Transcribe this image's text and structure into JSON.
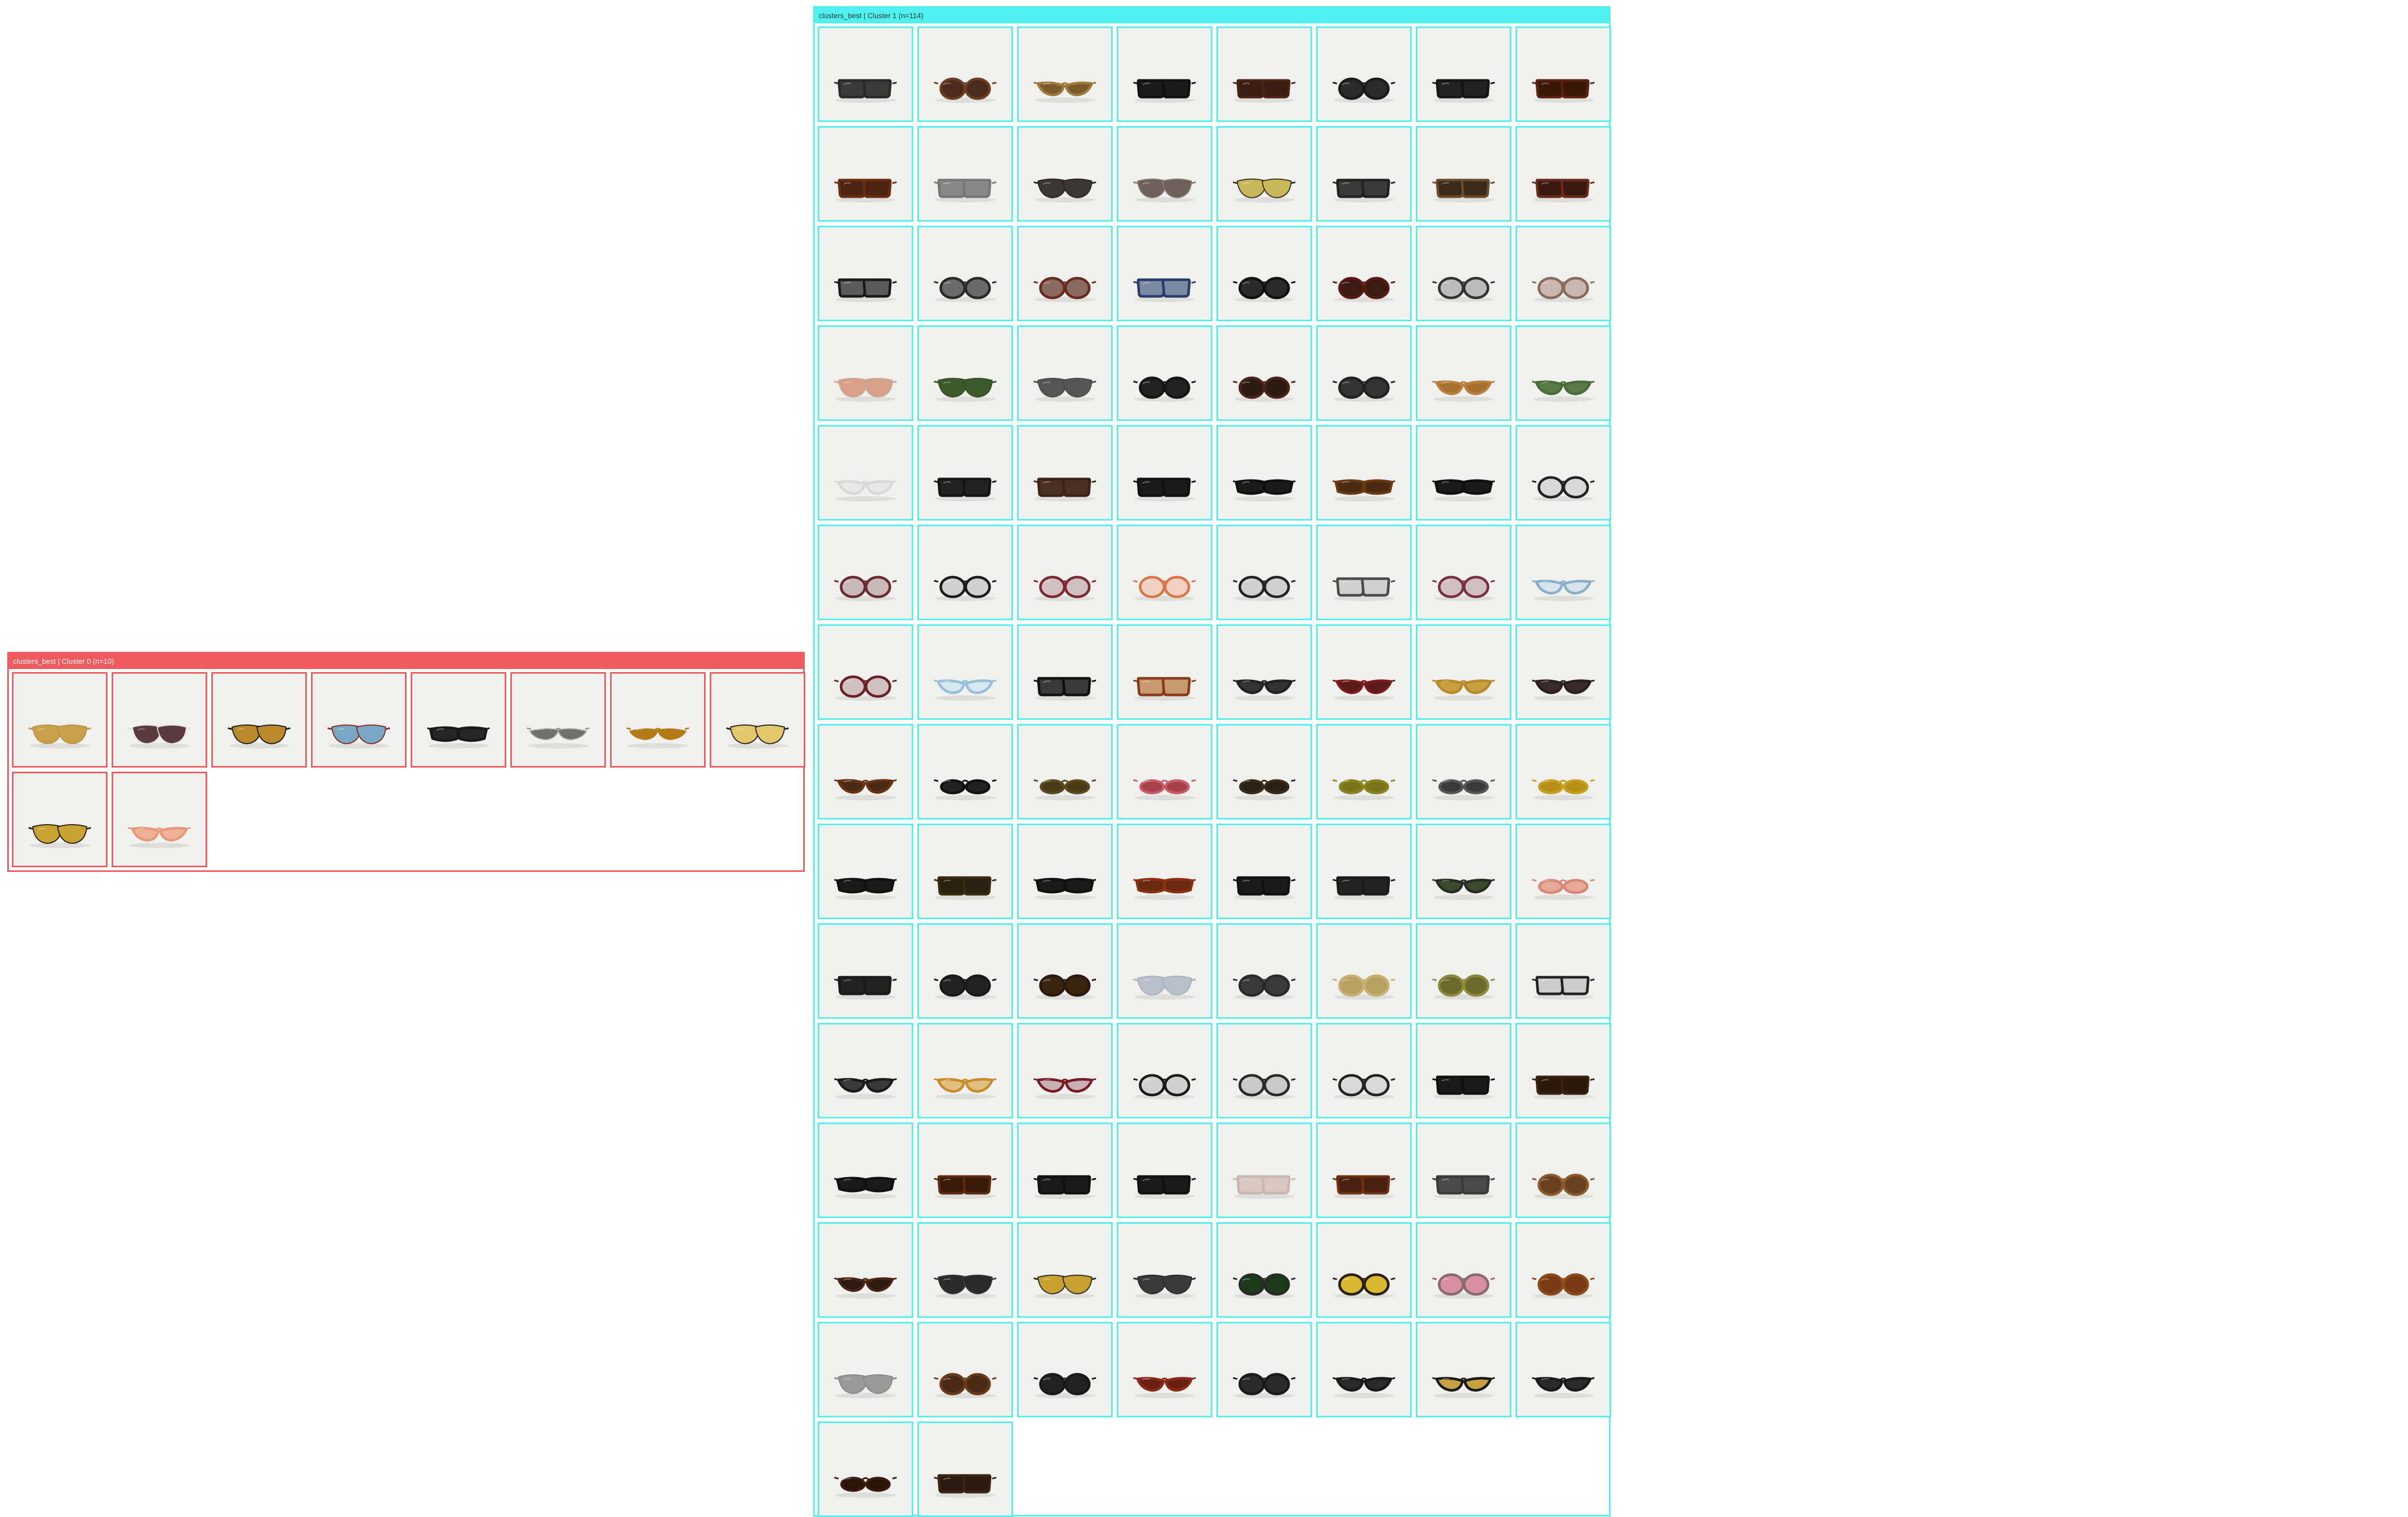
{
  "clusters": [
    {
      "title": "clusters_best | Cluster 0  (n=10)",
      "accent": "#ee5a5d",
      "items": [
        {
          "style": "aviator",
          "frame": "#b8954a",
          "lens": "#c9a04a"
        },
        {
          "style": "aviator",
          "frame": "#e5e2dd",
          "lens": "#5a3a3c"
        },
        {
          "style": "aviator",
          "frame": "#1d1a18",
          "lens": "#b98a2a"
        },
        {
          "style": "aviator",
          "frame": "#8a2a24",
          "lens": "#78a8c4"
        },
        {
          "style": "wrap",
          "frame": "#191919",
          "lens": "#262626"
        },
        {
          "style": "shield",
          "frame": "#9a9a98",
          "lens": "#6f706e"
        },
        {
          "style": "shield",
          "frame": "#b7801e",
          "lens": "#b47a16"
        },
        {
          "style": "aviator",
          "frame": "#2a2420",
          "lens": "#e2c86a"
        },
        {
          "style": "aviator",
          "frame": "#2a2018",
          "lens": "#c7a230"
        },
        {
          "style": "catEye",
          "frame": "#e59a78",
          "lens": "#f0b09a"
        }
      ]
    },
    {
      "title": "clusters_best | Cluster 1  (n=114)",
      "accent": "#4ff0ef",
      "items": [
        {
          "style": "square",
          "frame": "#2a2a2a",
          "lens": "#3a3a3a"
        },
        {
          "style": "round",
          "frame": "#6b3e22",
          "lens": "#4a2a1a"
        },
        {
          "style": "catEye",
          "frame": "#9b7a3a",
          "lens": "#7a5a2a"
        },
        {
          "style": "square",
          "frame": "#111111",
          "lens": "#1a1a1a"
        },
        {
          "style": "square",
          "frame": "#4a2218",
          "lens": "#3a1a12"
        },
        {
          "style": "round",
          "frame": "#1a1a1a",
          "lens": "#2a2a2a"
        },
        {
          "style": "square",
          "frame": "#151515",
          "lens": "#222222"
        },
        {
          "style": "square",
          "frame": "#5a2010",
          "lens": "#3a1808"
        },
        {
          "style": "square",
          "frame": "#6a2e12",
          "lens": "#4a2410"
        },
        {
          "style": "square",
          "frame": "#777777",
          "lens": "#888888"
        },
        {
          "style": "aviator",
          "frame": "#2a2420",
          "lens": "#3a3634"
        },
        {
          "style": "aviator",
          "frame": "#8a7e70",
          "lens": "#6a625a"
        },
        {
          "style": "aviator",
          "frame": "#3a3220",
          "lens": "#c8b85a"
        },
        {
          "style": "square",
          "frame": "#222222",
          "lens": "#3a3a3a"
        },
        {
          "style": "square",
          "frame": "#6a4a2a",
          "lens": "#3a2a1a"
        },
        {
          "style": "square",
          "frame": "#6a2a1a",
          "lens": "#3a1a10"
        },
        {
          "style": "square",
          "frame": "#1a1a1a",
          "lens": "#5a5a5a"
        },
        {
          "style": "round",
          "frame": "#2a2a2a",
          "lens": "#6a6a6a"
        },
        {
          "style": "round",
          "frame": "#6a2a20",
          "lens": "#8a6a60"
        },
        {
          "style": "square",
          "frame": "#2a3a6a",
          "lens": "#7a8aa0"
        },
        {
          "style": "round",
          "frame": "#111111",
          "lens": "#2a2a2a"
        },
        {
          "style": "round",
          "frame": "#5a1a12",
          "lens": "#3a1a12"
        },
        {
          "style": "round",
          "frame": "#333333",
          "lens": "#bbbbbb"
        },
        {
          "style": "round",
          "frame": "#8a6a5a",
          "lens": "#c8b8b0"
        },
        {
          "style": "aviator",
          "frame": "#c8a898",
          "lens": "#d8a088"
        },
        {
          "style": "aviator",
          "frame": "#3a4a2a",
          "lens": "#3a5a2a"
        },
        {
          "style": "aviator",
          "frame": "#4a4a4a",
          "lens": "#555555"
        },
        {
          "style": "round",
          "frame": "#151515",
          "lens": "#222222"
        },
        {
          "style": "round",
          "frame": "#4a2418",
          "lens": "#2a1a10"
        },
        {
          "style": "round",
          "frame": "#222222",
          "lens": "#333333"
        },
        {
          "style": "catEye",
          "frame": "#b8803a",
          "lens": "#a87030"
        },
        {
          "style": "catEye",
          "frame": "#4a6a3a",
          "lens": "#5a7a4a"
        },
        {
          "style": "catEye",
          "frame": "#d8d8d8",
          "lens": "#e8e8e8"
        },
        {
          "style": "square",
          "frame": "#151515",
          "lens": "#222222"
        },
        {
          "style": "square",
          "frame": "#3a2418",
          "lens": "#4a3020"
        },
        {
          "style": "square",
          "frame": "#111111",
          "lens": "#1a1a1a"
        },
        {
          "style": "wrap",
          "frame": "#111111",
          "lens": "#1a1a1a"
        },
        {
          "style": "wrap",
          "frame": "#6a3a12",
          "lens": "#4a2a10"
        },
        {
          "style": "wrap",
          "frame": "#111111",
          "lens": "#1a1a1a"
        },
        {
          "style": "round",
          "frame": "#222222",
          "lens": "#d8d8d8"
        },
        {
          "style": "round",
          "frame": "#6a2a30",
          "lens": "#c8b8b8"
        },
        {
          "style": "round",
          "frame": "#1a1a1a",
          "lens": "#d0d0d0"
        },
        {
          "style": "round",
          "frame": "#7a2a30",
          "lens": "#d0c0c0"
        },
        {
          "style": "round",
          "frame": "#d87848",
          "lens": "#f0d0c0"
        },
        {
          "style": "round",
          "frame": "#222222",
          "lens": "#d0d0d0"
        },
        {
          "style": "square",
          "frame": "#4a4a4a",
          "lens": "#d0d0d0"
        },
        {
          "style": "round",
          "frame": "#7a3040",
          "lens": "#d0c0c4"
        },
        {
          "style": "catEye",
          "frame": "#8ab0c8",
          "lens": "#d8e4ec"
        },
        {
          "style": "round",
          "frame": "#6a2024",
          "lens": "#d0c0c0"
        },
        {
          "style": "catEye",
          "frame": "#98c0d8",
          "lens": "#d8e8f0"
        },
        {
          "style": "square",
          "frame": "#111111",
          "lens": "#3a3a3a"
        },
        {
          "style": "square",
          "frame": "#8a3a18",
          "lens": "#c89a70"
        },
        {
          "style": "catEye",
          "frame": "#222222",
          "lens": "#333333"
        },
        {
          "style": "catEye",
          "frame": "#7a1a1a",
          "lens": "#5a1a1a"
        },
        {
          "style": "catEye",
          "frame": "#b88a2a",
          "lens": "#c8a040"
        },
        {
          "style": "catEye",
          "frame": "#2a2020",
          "lens": "#3a2a2a"
        },
        {
          "style": "catEye",
          "frame": "#6a3414",
          "lens": "#4a2a14"
        },
        {
          "style": "oval",
          "frame": "#111111",
          "lens": "#222222"
        },
        {
          "style": "oval",
          "frame": "#5a4a20",
          "lens": "#4a3a18"
        },
        {
          "style": "oval",
          "frame": "#c85a6a",
          "lens": "#a8404a"
        },
        {
          "style": "oval",
          "frame": "#3a2a1a",
          "lens": "#2a2014"
        },
        {
          "style": "oval",
          "frame": "#8a8420",
          "lens": "#7a7418"
        },
        {
          "style": "oval",
          "frame": "#555555",
          "lens": "#3a3a3a"
        },
        {
          "style": "oval",
          "frame": "#c8a020",
          "lens": "#b89018"
        },
        {
          "style": "wrap",
          "frame": "#111111",
          "lens": "#1a1a1a"
        },
        {
          "style": "square",
          "frame": "#3a2a10",
          "lens": "#2a2010"
        },
        {
          "style": "wrap",
          "frame": "#111111",
          "lens": "#1a1a1a"
        },
        {
          "style": "wrap",
          "frame": "#8a3010",
          "lens": "#6a2a10"
        },
        {
          "style": "square",
          "frame": "#111111",
          "lens": "#1a1a1a"
        },
        {
          "style": "square",
          "frame": "#1a1a1a",
          "lens": "#222222"
        },
        {
          "style": "catEye",
          "frame": "#2a2a2a",
          "lens": "#3a4a2a"
        },
        {
          "style": "oval",
          "frame": "#d88878",
          "lens": "#e8a898"
        },
        {
          "style": "square",
          "frame": "#1a1a1a",
          "lens": "#222222"
        },
        {
          "style": "round",
          "frame": "#1a1a1a",
          "lens": "#222222"
        },
        {
          "style": "round",
          "frame": "#2a1a10",
          "lens": "#3a2410"
        },
        {
          "style": "aviator",
          "frame": "#a8b0b8",
          "lens": "#b8c0c8"
        },
        {
          "style": "round",
          "frame": "#2a2a2a",
          "lens": "#3a3a3a"
        },
        {
          "style": "round",
          "frame": "#c8b070",
          "lens": "#b8a060"
        },
        {
          "style": "round",
          "frame": "#8a8a3a",
          "lens": "#6a6a2a"
        },
        {
          "style": "square",
          "frame": "#222222",
          "lens": "#cccccc"
        },
        {
          "style": "catEye",
          "frame": "#1a1a1a",
          "lens": "#3a3a3a"
        },
        {
          "style": "catEye",
          "frame": "#c88a2a",
          "lens": "#e0c080"
        },
        {
          "style": "catEye",
          "frame": "#7a1a24",
          "lens": "#c8b0b4"
        },
        {
          "style": "round",
          "frame": "#1a1a1a",
          "lens": "#d0d0d0"
        },
        {
          "style": "round",
          "frame": "#2a2a2a",
          "lens": "#c8c8c8"
        },
        {
          "style": "round",
          "frame": "#222222",
          "lens": "#d8d8d8"
        },
        {
          "style": "square",
          "frame": "#111111",
          "lens": "#1a1a1a"
        },
        {
          "style": "square",
          "frame": "#3a2010",
          "lens": "#2a1808"
        },
        {
          "style": "wrap",
          "frame": "#111111",
          "lens": "#1a1a1a"
        },
        {
          "style": "square",
          "frame": "#5a2a10",
          "lens": "#3a1a08"
        },
        {
          "style": "square",
          "frame": "#111111",
          "lens": "#1a1a1a"
        },
        {
          "style": "square",
          "frame": "#111111",
          "lens": "#1a1a1a"
        },
        {
          "style": "square",
          "frame": "#c8b8b0",
          "lens": "#d8c8c0"
        },
        {
          "style": "square",
          "frame": "#6a3010",
          "lens": "#4a2010"
        },
        {
          "style": "square",
          "frame": "#3a3a3a",
          "lens": "#4a4a4a"
        },
        {
          "style": "round",
          "frame": "#8a5a2a",
          "lens": "#6a4020"
        },
        {
          "style": "catEye",
          "frame": "#4a2414",
          "lens": "#2a1a10"
        },
        {
          "style": "aviator",
          "frame": "#3a3a3a",
          "lens": "#2a2a2a"
        },
        {
          "style": "aviator",
          "frame": "#2a2a2a",
          "lens": "#c8a030"
        },
        {
          "style": "aviator",
          "frame": "#2a2a2a",
          "lens": "#3a3a3a"
        },
        {
          "style": "round",
          "frame": "#2a2a2a",
          "lens": "#1a3a1a"
        },
        {
          "style": "round",
          "frame": "#2a2010",
          "lens": "#d8b830"
        },
        {
          "style": "round",
          "frame": "#8a6a70",
          "lens": "#d890a0"
        },
        {
          "style": "round",
          "frame": "#8a4a1a",
          "lens": "#7a3a14"
        },
        {
          "style": "aviator",
          "frame": "#888888",
          "lens": "#999999"
        },
        {
          "style": "round",
          "frame": "#6a3a1a",
          "lens": "#4a2a14"
        },
        {
          "style": "round",
          "frame": "#1a1a1a",
          "lens": "#222222"
        },
        {
          "style": "catEye",
          "frame": "#8a2a1a",
          "lens": "#6a2010"
        },
        {
          "style": "round",
          "frame": "#1a1a1a",
          "lens": "#2a2a2a"
        },
        {
          "style": "catEye",
          "frame": "#1a1a1a",
          "lens": "#2a2a2a"
        },
        {
          "style": "catEye",
          "frame": "#1a1a1a",
          "lens": "#c8a040"
        },
        {
          "style": "catEye",
          "frame": "#1a1a1a",
          "lens": "#2a2a2a"
        },
        {
          "style": "oval",
          "frame": "#3a1a10",
          "lens": "#2a1408"
        },
        {
          "style": "square",
          "frame": "#3a2414",
          "lens": "#2a1a10"
        }
      ]
    }
  ]
}
